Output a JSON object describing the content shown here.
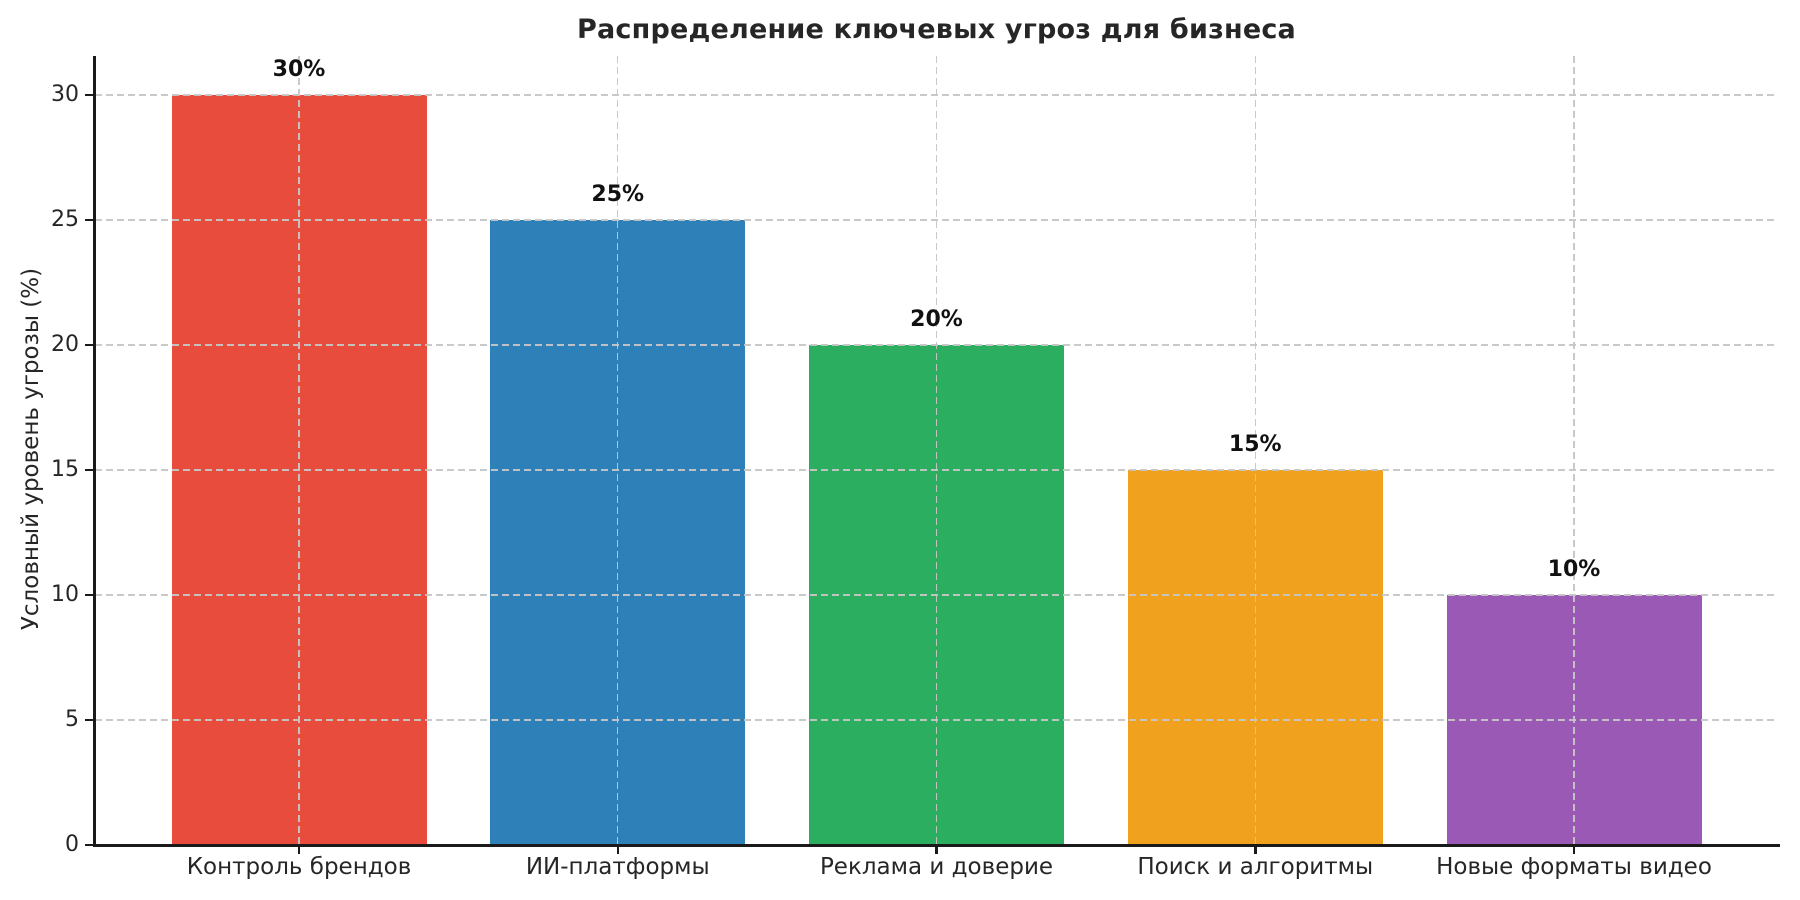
{
  "chart_data": {
    "type": "bar",
    "title": "Распределение ключевых угроз для бизнеса",
    "xlabel": "",
    "ylabel": "Условный уровень угрозы (%)",
    "categories": [
      "Контроль брендов",
      "ИИ-платформы",
      "Реклама и доверие",
      "Поиск и алгоритмы",
      "Новые форматы видео"
    ],
    "values": [
      30,
      25,
      20,
      15,
      10
    ],
    "bar_value_labels": [
      "30%",
      "25%",
      "20%",
      "15%",
      "10%"
    ],
    "bar_colors": [
      "#E74C3C",
      "#2E80B9",
      "#2BAE60",
      "#F0A11D",
      "#9B59B6"
    ],
    "yticks": [
      0,
      5,
      10,
      15,
      20,
      25,
      30
    ],
    "ylim": [
      0,
      31.5
    ],
    "xlim": [
      -0.64,
      4.64
    ],
    "bar_width_units": 0.8,
    "grid": {
      "style": "dashed",
      "axes": "both",
      "color": "#c6c6c6",
      "position": "above-bars"
    },
    "legend": "none",
    "text_color": "#262626",
    "spine_color": "#1a1a1a",
    "background_color": "#ffffff"
  }
}
